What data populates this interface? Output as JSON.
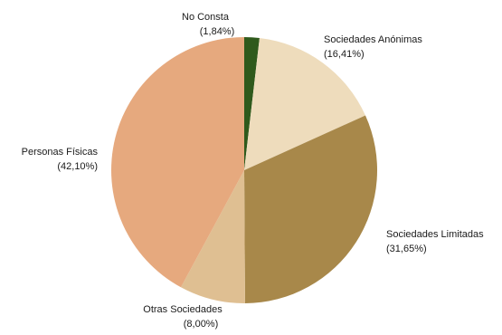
{
  "chart_data": {
    "type": "pie",
    "start_angle_deg": 0,
    "direction": "clockwise",
    "slices": [
      {
        "name": "No Consta",
        "value": 1.84,
        "label": "(1,84%)",
        "color": "#2f5a1c"
      },
      {
        "name": "Sociedades Anónimas",
        "value": 16.41,
        "label": "(16,41%)",
        "color": "#eedcbc"
      },
      {
        "name": "Sociedades Limitadas",
        "value": 31.65,
        "label": "(31,65%)",
        "color": "#a8884a"
      },
      {
        "name": "Otras Sociedades",
        "value": 8.0,
        "label": "(8,00%)",
        "color": "#dfbf92"
      },
      {
        "name": "Personas Físicas",
        "value": 42.1,
        "label": "(42,10%)",
        "color": "#e6a97e"
      }
    ]
  }
}
